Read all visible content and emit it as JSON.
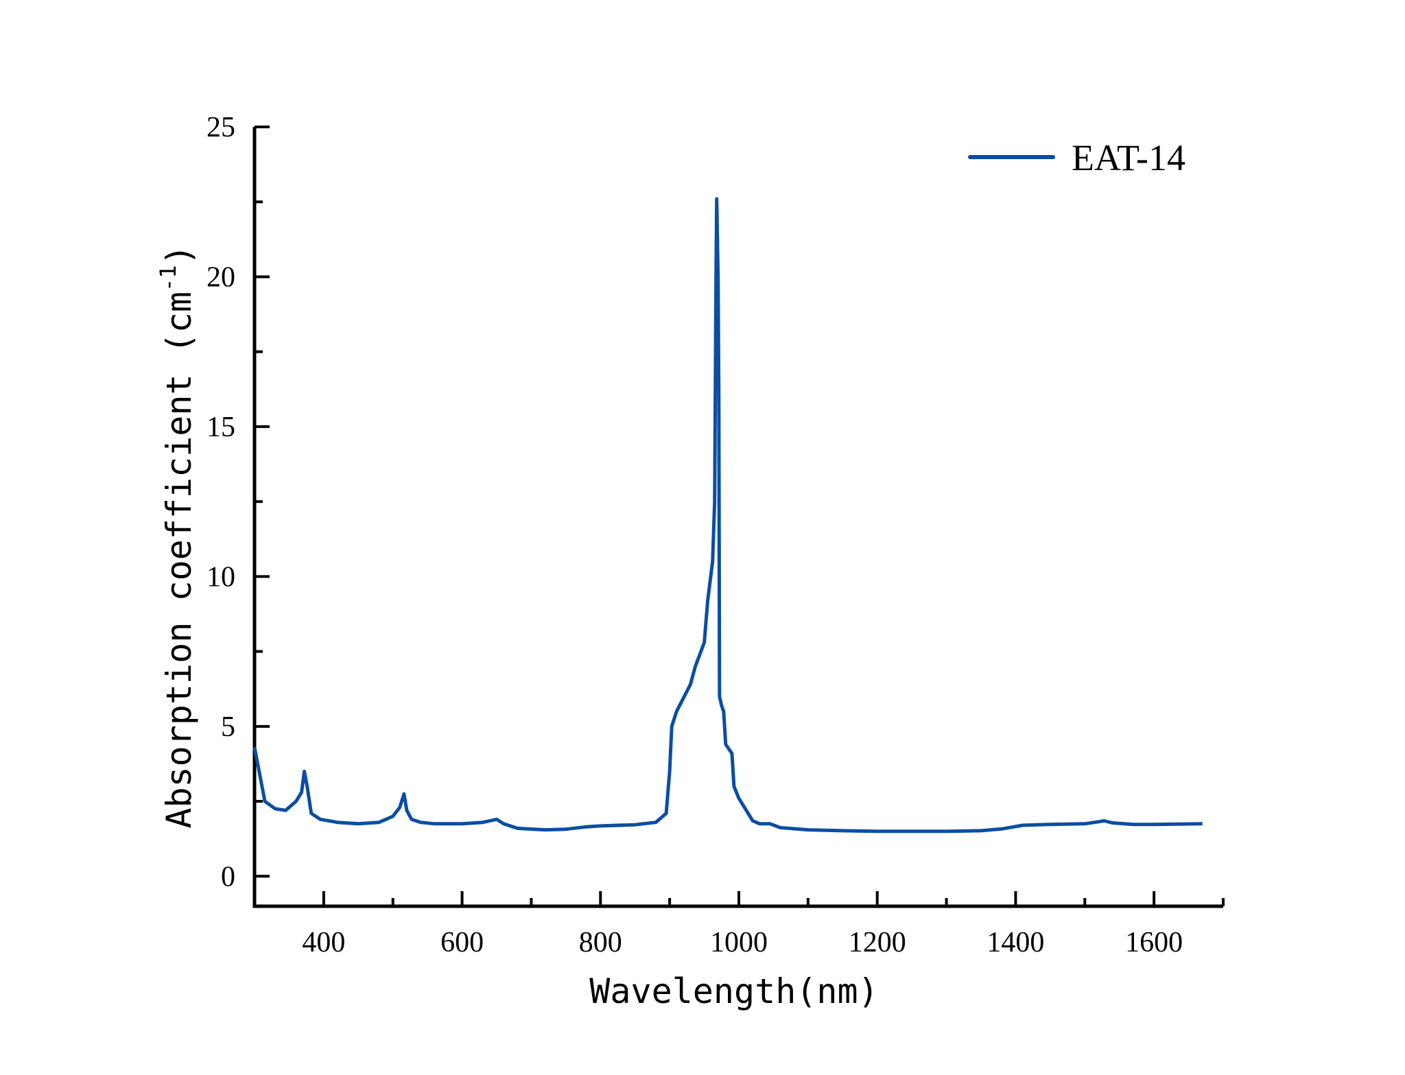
{
  "chart_data": {
    "type": "line",
    "title": "",
    "xlabel": "Wavelength(nm)",
    "ylabel": "Absorption coefficient (cm",
    "ylabel_sup": "-1",
    "ylabel_close": ")",
    "xlim": [
      300,
      1700
    ],
    "ylim": [
      -1,
      25
    ],
    "xticks": [
      400,
      600,
      800,
      1000,
      1200,
      1400,
      1600
    ],
    "yticks": [
      0,
      5,
      10,
      15,
      20,
      25
    ],
    "grid": false,
    "legend_position": "top-right",
    "color": "#0b4ea2",
    "series": [
      {
        "name": "EAT-14",
        "x": [
          300,
          315,
          330,
          345,
          360,
          368,
          372,
          376,
          382,
          395,
          420,
          450,
          480,
          500,
          510,
          516,
          520,
          527,
          540,
          560,
          600,
          630,
          650,
          660,
          680,
          720,
          750,
          780,
          800,
          850,
          880,
          895,
          900,
          903,
          910,
          930,
          937,
          950,
          955,
          962,
          965,
          967,
          968,
          970,
          971,
          972,
          975,
          978,
          981,
          990,
          993,
          1000,
          1020,
          1030,
          1045,
          1060,
          1100,
          1150,
          1200,
          1300,
          1350,
          1380,
          1410,
          1450,
          1500,
          1520,
          1528,
          1540,
          1570,
          1600,
          1670
        ],
        "y": [
          4.3,
          2.5,
          2.25,
          2.2,
          2.5,
          2.8,
          3.5,
          3.0,
          2.1,
          1.9,
          1.8,
          1.75,
          1.8,
          2.0,
          2.3,
          2.75,
          2.2,
          1.9,
          1.8,
          1.75,
          1.75,
          1.8,
          1.9,
          1.75,
          1.6,
          1.55,
          1.57,
          1.65,
          1.68,
          1.72,
          1.8,
          2.1,
          3.5,
          5.0,
          5.5,
          6.4,
          7.0,
          7.8,
          9.2,
          10.5,
          12.5,
          20,
          22.6,
          20,
          16,
          6.0,
          5.7,
          5.5,
          4.4,
          4.1,
          3.0,
          2.6,
          1.85,
          1.75,
          1.75,
          1.62,
          1.55,
          1.52,
          1.5,
          1.5,
          1.52,
          1.58,
          1.7,
          1.73,
          1.75,
          1.82,
          1.85,
          1.78,
          1.73,
          1.73,
          1.75
        ]
      }
    ]
  }
}
